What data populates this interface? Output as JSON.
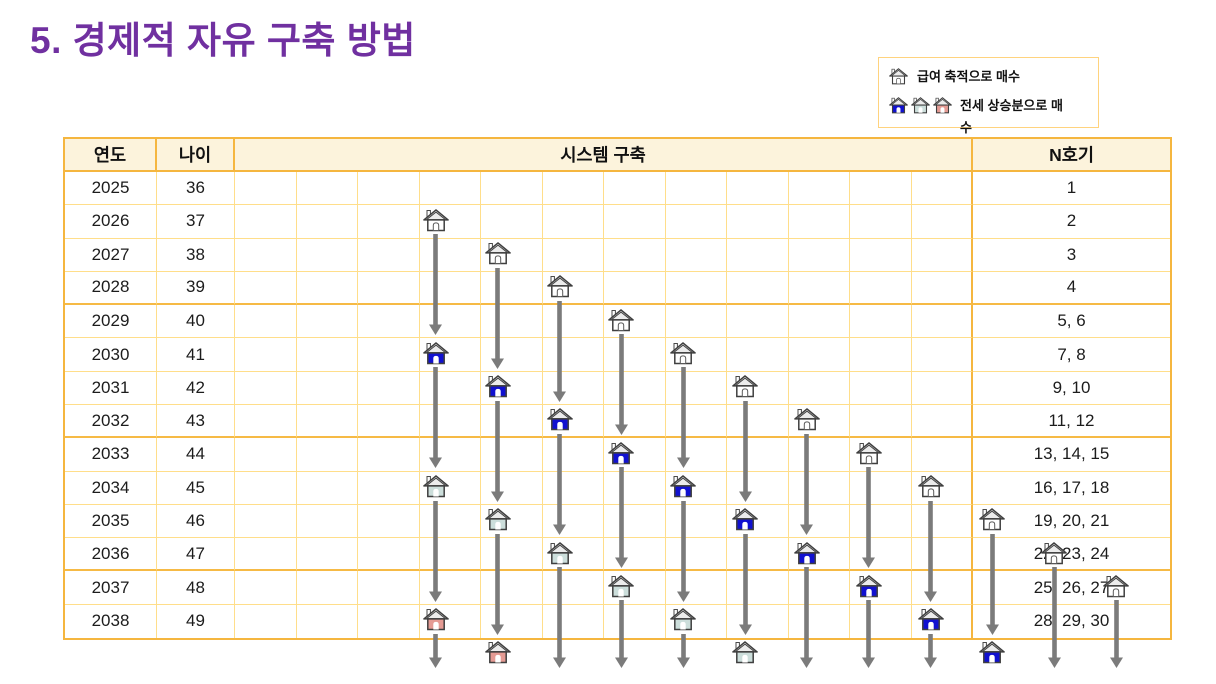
{
  "title": {
    "text": "5. 경제적 자유 구축 방법"
  },
  "legend": {
    "salary": {
      "label": "급여 축적으로 매수",
      "icon": "house-white"
    },
    "jeonse": {
      "label": "전세 상승분으로 매수",
      "icons": [
        "house-blue",
        "house-green",
        "house-pink"
      ]
    }
  },
  "table": {
    "headers": {
      "year": "연도",
      "age": "나이",
      "system": "시스템 구축",
      "units": "N호기"
    }
  },
  "chart_data": {
    "type": "table",
    "title": "시스템 구축",
    "system_columns": 12,
    "years": [
      2025,
      2026,
      2027,
      2028,
      2029,
      2030,
      2031,
      2032,
      2033,
      2034,
      2035,
      2036,
      2037,
      2038
    ],
    "ages": [
      36,
      37,
      38,
      39,
      40,
      41,
      42,
      43,
      44,
      45,
      46,
      47,
      48,
      49
    ],
    "units_per_year": [
      "1",
      "2",
      "3",
      "4",
      "5, 6",
      "7, 8",
      "9, 10",
      "11, 12",
      "13, 14, 15",
      "16, 17, 18",
      "19, 20, 21",
      "22, 23, 24",
      "25, 26, 27",
      "28, 29, 30"
    ],
    "house_meanings": {
      "white": "급여 축적으로 매수",
      "blue_green_pink": "전세 상승분으로 매수"
    },
    "houses": {
      "white": [
        [
          1,
          2025
        ],
        [
          2,
          2026
        ],
        [
          3,
          2027
        ],
        [
          4,
          2028
        ],
        [
          5,
          2029
        ],
        [
          6,
          2030
        ],
        [
          7,
          2031
        ],
        [
          8,
          2032
        ],
        [
          9,
          2033
        ],
        [
          10,
          2034
        ],
        [
          11,
          2035
        ],
        [
          12,
          2036
        ]
      ],
      "blue": [
        [
          1,
          2029
        ],
        [
          2,
          2030
        ],
        [
          3,
          2031
        ],
        [
          4,
          2032
        ],
        [
          5,
          2033
        ],
        [
          6,
          2034
        ],
        [
          7,
          2035
        ],
        [
          8,
          2036
        ],
        [
          9,
          2037
        ],
        [
          10,
          2038
        ]
      ],
      "green": [
        [
          1,
          2033
        ],
        [
          2,
          2034
        ],
        [
          3,
          2035
        ],
        [
          4,
          2036
        ],
        [
          5,
          2037
        ],
        [
          6,
          2038
        ]
      ],
      "pink": [
        [
          1,
          2037
        ],
        [
          2,
          2038
        ]
      ]
    },
    "arrows": [
      [
        1,
        2026,
        2028
      ],
      [
        2,
        2027,
        2029
      ],
      [
        3,
        2028,
        2030
      ],
      [
        4,
        2029,
        2031
      ],
      [
        5,
        2030,
        2032
      ],
      [
        6,
        2031,
        2033
      ],
      [
        7,
        2032,
        2034
      ],
      [
        8,
        2033,
        2035
      ],
      [
        9,
        2034,
        2036
      ],
      [
        10,
        2035,
        2037
      ],
      [
        11,
        2036,
        2038
      ],
      [
        12,
        2037,
        2038
      ],
      [
        1,
        2030,
        2032
      ],
      [
        2,
        2031,
        2033
      ],
      [
        3,
        2032,
        2034
      ],
      [
        4,
        2033,
        2035
      ],
      [
        5,
        2034,
        2036
      ],
      [
        6,
        2035,
        2037
      ],
      [
        7,
        2036,
        2038
      ],
      [
        8,
        2037,
        2038
      ],
      [
        9,
        2038,
        2038
      ],
      [
        1,
        2034,
        2036
      ],
      [
        2,
        2035,
        2037
      ],
      [
        3,
        2036,
        2038
      ],
      [
        4,
        2037,
        2038
      ],
      [
        5,
        2038,
        2038
      ],
      [
        1,
        2038,
        2038
      ]
    ]
  },
  "colors": {
    "title": "#7030A0",
    "table_border_strong": "#F5B63F",
    "table_border_light": "#FFDE8A",
    "header_bg": "#FCF3DC",
    "arrow": "#7B7B7B",
    "legend_border": "#FFD37E",
    "house_white": "#FFFFFF",
    "house_blue": "#1111D0",
    "house_green": "#CCDEDB",
    "house_pink": "#E59B94",
    "house_outline": "#3F3F3F",
    "roof_fill": "#ECECEC"
  }
}
